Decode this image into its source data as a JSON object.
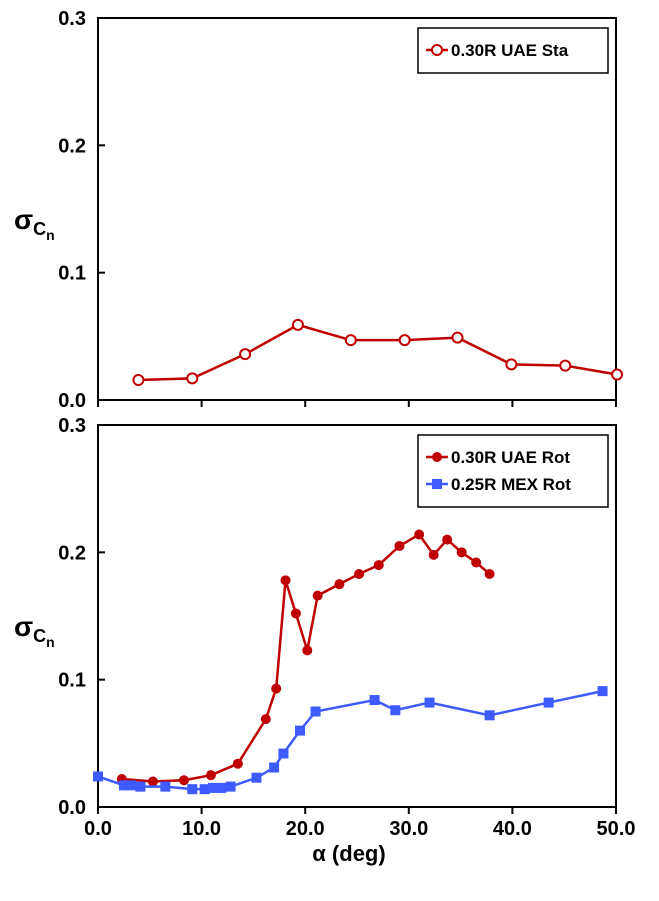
{
  "chart_data": [
    {
      "type": "line",
      "xlim": [
        0,
        50
      ],
      "ylim": [
        0,
        0.3
      ],
      "yticks": [
        {
          "value": 0,
          "label": "0.0"
        },
        {
          "value": 0.1,
          "label": "0.1"
        },
        {
          "value": 0.2,
          "label": "0.2"
        },
        {
          "value": 0.3,
          "label": "0.3"
        }
      ],
      "ylabel": "σ",
      "ylabel_sub": "C",
      "ylabel_subsub": "n",
      "legend": "upper right",
      "series": [
        {
          "name": "0.30R UAE Sta",
          "color": "#c00000",
          "marker": "open-circle",
          "x": [
            3.9,
            9.1,
            14.2,
            19.3,
            24.4,
            29.6,
            34.7,
            39.9,
            45.1,
            50.1
          ],
          "values": [
            0.0157,
            0.017,
            0.036,
            0.059,
            0.047,
            0.047,
            0.049,
            0.028,
            0.027,
            0.02
          ]
        }
      ]
    },
    {
      "type": "line",
      "xlim": [
        0,
        50
      ],
      "ylim": [
        0,
        0.3
      ],
      "xticks": [
        {
          "value": 0,
          "label": "0.0"
        },
        {
          "value": 10,
          "label": "10.0"
        },
        {
          "value": 20,
          "label": "20.0"
        },
        {
          "value": 30,
          "label": "30.0"
        },
        {
          "value": 40,
          "label": "40.0"
        },
        {
          "value": 50,
          "label": "50.0"
        }
      ],
      "yticks": [
        {
          "value": 0,
          "label": "0.0"
        },
        {
          "value": 0.1,
          "label": "0.1"
        },
        {
          "value": 0.2,
          "label": "0.2"
        },
        {
          "value": 0.3,
          "label": "0.3"
        }
      ],
      "xlabel": "α (deg)",
      "ylabel": "σ",
      "ylabel_sub": "C",
      "ylabel_subsub": "n",
      "legend": "upper right",
      "series": [
        {
          "name": "0.30R UAE Rot",
          "color": "#c00000",
          "marker": "circle",
          "x": [
            2.3,
            5.3,
            8.3,
            10.9,
            13.5,
            16.2,
            17.2,
            18.1,
            19.1,
            20.2,
            21.2,
            23.3,
            25.2,
            27.1,
            29.1,
            31.0,
            32.4,
            33.7,
            35.1,
            36.5,
            37.8
          ],
          "values": [
            0.022,
            0.02,
            0.021,
            0.025,
            0.034,
            0.069,
            0.093,
            0.178,
            0.152,
            0.123,
            0.166,
            0.175,
            0.183,
            0.19,
            0.205,
            0.214,
            0.198,
            0.21,
            0.2,
            0.192,
            0.183
          ]
        },
        {
          "name": "0.25R MEX Rot",
          "color": "#3d5bff",
          "marker": "square",
          "x": [
            0,
            2.5,
            3.2,
            4.1,
            6.5,
            9.1,
            10.3,
            11.1,
            11.9,
            12.8,
            15.3,
            17.0,
            17.9,
            19.5,
            21.0,
            26.7,
            28.7,
            32.0,
            37.8,
            43.5,
            48.7
          ],
          "values": [
            0.024,
            0.017,
            0.017,
            0.016,
            0.016,
            0.014,
            0.014,
            0.015,
            0.015,
            0.016,
            0.023,
            0.031,
            0.042,
            0.06,
            0.075,
            0.084,
            0.076,
            0.082,
            0.072,
            0.082,
            0.091
          ]
        }
      ]
    }
  ]
}
